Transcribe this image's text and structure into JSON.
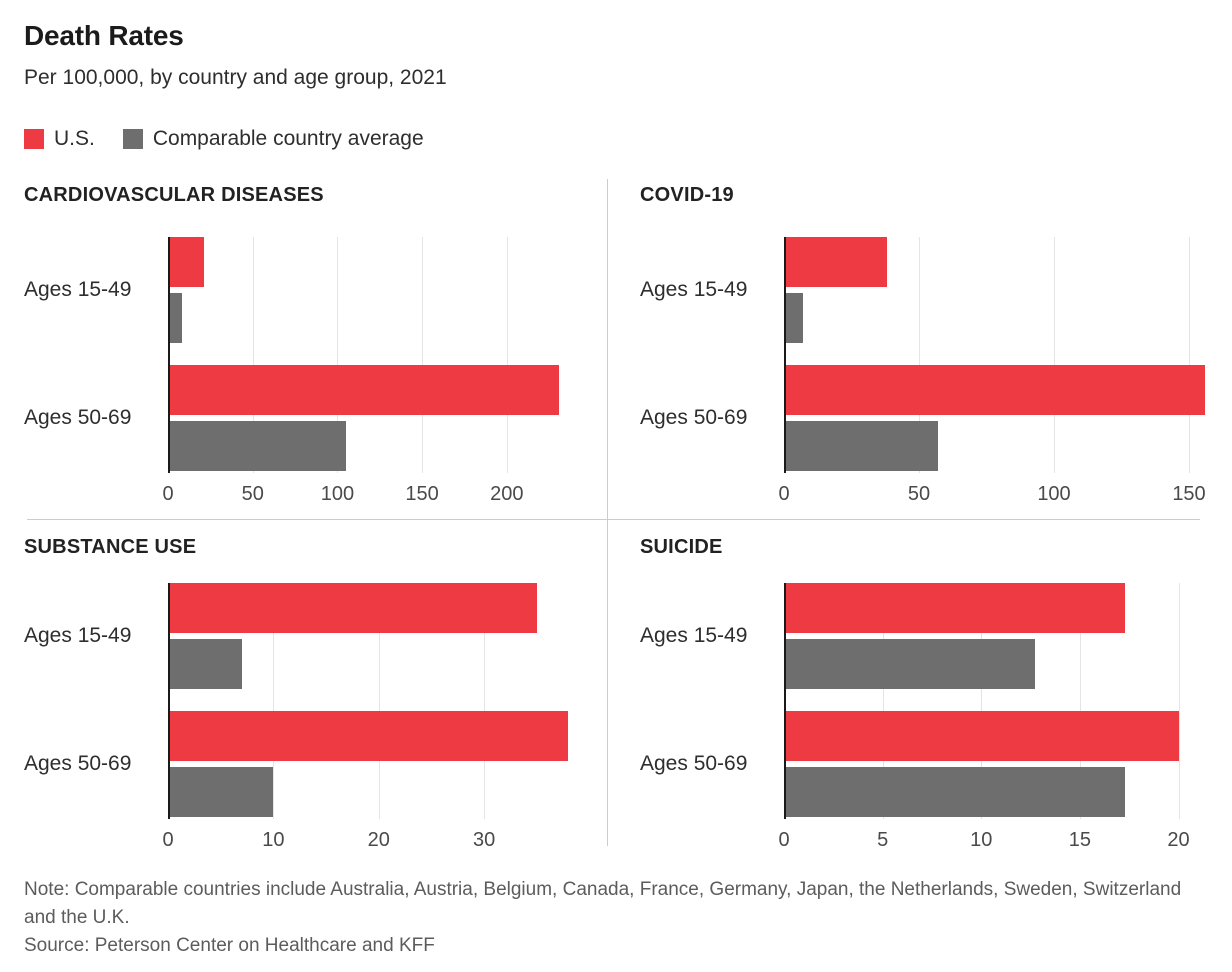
{
  "header": {
    "title": "Death Rates",
    "subtitle": "Per 100,000, by country and age group, 2021"
  },
  "legend": {
    "items": [
      {
        "key": "us",
        "label": "U.S."
      },
      {
        "key": "avg",
        "label": "Comparable country average"
      }
    ]
  },
  "colors": {
    "us": "#ed3a43",
    "avg": "#6e6e6e",
    "axis": "#1a1a1a",
    "gridline": "#e4e4e4",
    "divider": "#cccccc"
  },
  "chart_data": [
    {
      "type": "bar",
      "orientation": "horizontal",
      "title": "CARDIOVASCULAR DISEASES",
      "categories": [
        "Ages 15-49",
        "Ages 50-69"
      ],
      "series": [
        {
          "name": "U.S.",
          "values": [
            21,
            231
          ]
        },
        {
          "name": "Comparable country average",
          "values": [
            8,
            105
          ]
        }
      ],
      "xticks": [
        0,
        50,
        100,
        150,
        200
      ],
      "xlim": [
        0,
        255
      ],
      "grid": true,
      "legend_position": "top"
    },
    {
      "type": "bar",
      "orientation": "horizontal",
      "title": "COVID-19",
      "categories": [
        "Ages 15-49",
        "Ages 50-69"
      ],
      "series": [
        {
          "name": "U.S.",
          "values": [
            38,
            156
          ]
        },
        {
          "name": "Comparable country average",
          "values": [
            7,
            57
          ]
        }
      ],
      "xticks": [
        0,
        50,
        100,
        150
      ],
      "xlim": [
        0,
        160
      ],
      "grid": true,
      "legend_position": "top"
    },
    {
      "type": "bar",
      "orientation": "horizontal",
      "title": "SUBSTANCE USE",
      "categories": [
        "Ages 15-49",
        "Ages 50-69"
      ],
      "series": [
        {
          "name": "U.S.",
          "values": [
            35,
            38
          ]
        },
        {
          "name": "Comparable country average",
          "values": [
            7,
            10
          ]
        }
      ],
      "xticks": [
        0,
        10,
        20,
        30
      ],
      "xlim": [
        0,
        41
      ],
      "grid": true,
      "legend_position": "top"
    },
    {
      "type": "bar",
      "orientation": "horizontal",
      "title": "SUICIDE",
      "categories": [
        "Ages 15-49",
        "Ages 50-69"
      ],
      "series": [
        {
          "name": "U.S.",
          "values": [
            17.3,
            20
          ]
        },
        {
          "name": "Comparable country average",
          "values": [
            12.7,
            17.3
          ]
        }
      ],
      "xticks": [
        0,
        5,
        10,
        15,
        20
      ],
      "xlim": [
        0,
        21.9
      ],
      "grid": true,
      "legend_position": "top"
    }
  ],
  "footer": {
    "note": "Note: Comparable countries include Australia, Austria, Belgium, Canada, France, Germany, Japan, the Netherlands, Sweden, Switzerland and the U.K.",
    "source": "Source: Peterson Center on Healthcare and KFF"
  }
}
